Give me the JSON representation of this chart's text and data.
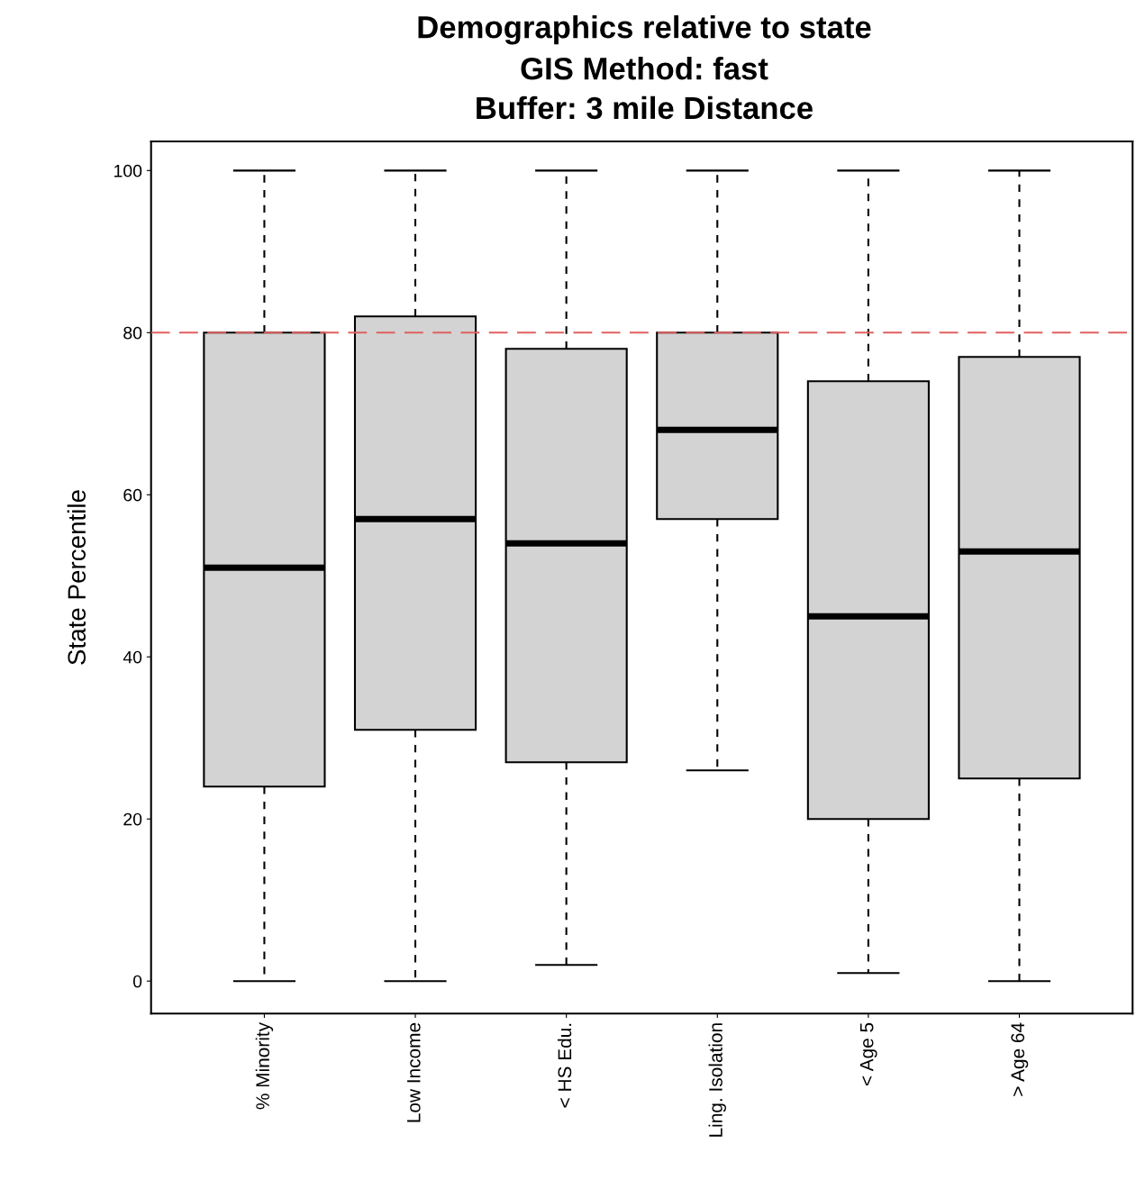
{
  "chart_data": {
    "type": "box",
    "title": "Demographics relative to state",
    "subtitle": "GIS Method: fast\nBuffer: 3 mile Distance",
    "ylabel": "State Percentile",
    "categories": [
      "% Minority",
      "Low Income",
      "< HS Edu.",
      "Ling. Isolation",
      "< Age 5",
      "> Age 64"
    ],
    "color": "#d3d3d3",
    "boxes": [
      {
        "low": 0,
        "q1": 24,
        "median": 51,
        "q3": 80,
        "high": 100
      },
      {
        "low": 0,
        "q1": 31,
        "median": 57,
        "q3": 82,
        "high": 100
      },
      {
        "low": 2,
        "q1": 27,
        "median": 54,
        "q3": 78,
        "high": 100
      },
      {
        "low": 26,
        "q1": 57,
        "median": 68,
        "q3": 80,
        "high": 100
      },
      {
        "low": 1,
        "q1": 20,
        "median": 45,
        "q3": 74,
        "high": 100
      },
      {
        "low": 0,
        "q1": 25,
        "median": 53,
        "q3": 77,
        "high": 100
      }
    ],
    "ylim": [
      -4,
      103.6
    ],
    "yticks": [
      0,
      20,
      40,
      60,
      80,
      100
    ],
    "grid": false,
    "ref_lines": [
      {
        "axis": "y",
        "value": 80,
        "color": "#e06060",
        "line_style": "dashed"
      }
    ]
  }
}
